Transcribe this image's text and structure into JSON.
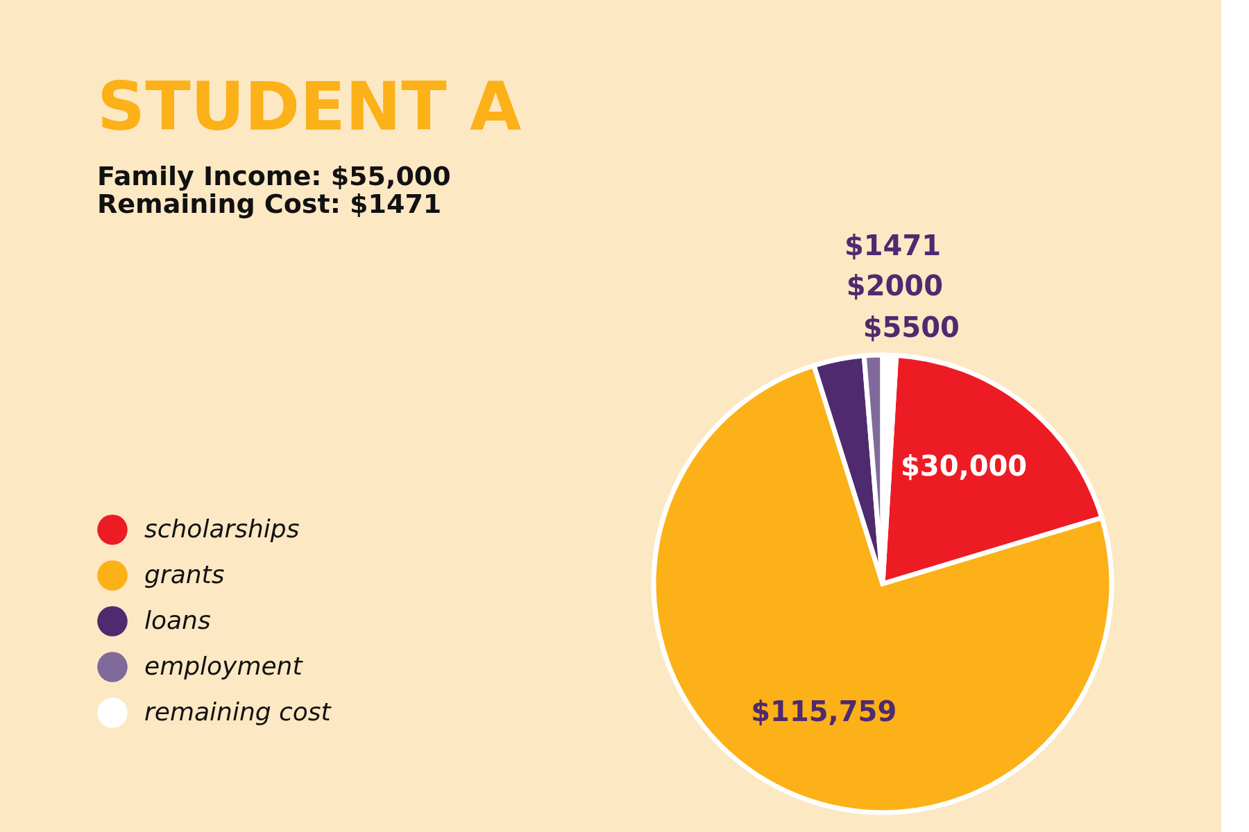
{
  "chart_data": {
    "type": "pie",
    "title": "STUDENT A",
    "subtitle": [
      "Family Income: $55,000",
      "Remaining Cost: $1471"
    ],
    "categories": [
      "scholarships",
      "grants",
      "loans",
      "employment",
      "remaining cost"
    ],
    "values": [
      30000,
      115759,
      5500,
      2000,
      1471
    ],
    "colors": [
      "#ed1c24",
      "#fbb117",
      "#4f2a6e",
      "#806a9a",
      "#ffffff"
    ],
    "value_labels": [
      "$30,000",
      "$115,759",
      "$5500",
      "$2000",
      "$1471"
    ],
    "legend": "left"
  }
}
